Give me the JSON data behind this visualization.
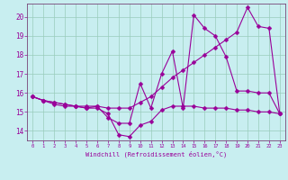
{
  "xlabel": "Windchill (Refroidissement éolien,°C)",
  "background_color": "#c8eef0",
  "grid_color": "#99ccbb",
  "line_color": "#990099",
  "spine_color": "#774477",
  "xlim": [
    -0.5,
    23.5
  ],
  "ylim": [
    13.5,
    20.7
  ],
  "yticks": [
    14,
    15,
    16,
    17,
    18,
    19,
    20
  ],
  "xticks": [
    0,
    1,
    2,
    3,
    4,
    5,
    6,
    7,
    8,
    9,
    10,
    11,
    12,
    13,
    14,
    15,
    16,
    17,
    18,
    19,
    20,
    21,
    22,
    23
  ],
  "series1_x": [
    0,
    1,
    2,
    3,
    4,
    5,
    6,
    7,
    8,
    9,
    10,
    11,
    12,
    13,
    14,
    15,
    16,
    17,
    18,
    19,
    20,
    21,
    22,
    23
  ],
  "series1_y": [
    15.8,
    15.6,
    15.4,
    15.3,
    15.3,
    15.2,
    15.2,
    14.9,
    13.8,
    13.7,
    14.3,
    14.5,
    15.1,
    15.3,
    15.3,
    15.3,
    15.2,
    15.2,
    15.2,
    15.1,
    15.1,
    15.0,
    15.0,
    14.9
  ],
  "series2_x": [
    0,
    1,
    2,
    3,
    4,
    5,
    6,
    7,
    8,
    9,
    10,
    11,
    12,
    13,
    14,
    15,
    16,
    17,
    18,
    19,
    20,
    21,
    22,
    23
  ],
  "series2_y": [
    15.8,
    15.6,
    15.5,
    15.4,
    15.3,
    15.2,
    15.3,
    14.7,
    14.4,
    14.4,
    16.5,
    15.2,
    17.0,
    18.2,
    15.2,
    20.1,
    19.4,
    19.0,
    17.9,
    16.1,
    16.1,
    16.0,
    16.0,
    14.9
  ],
  "series3_x": [
    0,
    1,
    2,
    3,
    4,
    5,
    6,
    7,
    8,
    9,
    10,
    11,
    12,
    13,
    14,
    15,
    16,
    17,
    18,
    19,
    20,
    21,
    22,
    23
  ],
  "series3_y": [
    15.8,
    15.6,
    15.5,
    15.4,
    15.3,
    15.3,
    15.3,
    15.2,
    15.2,
    15.2,
    15.5,
    15.8,
    16.3,
    16.8,
    17.2,
    17.6,
    18.0,
    18.4,
    18.8,
    19.2,
    20.5,
    19.5,
    19.4,
    14.9
  ]
}
